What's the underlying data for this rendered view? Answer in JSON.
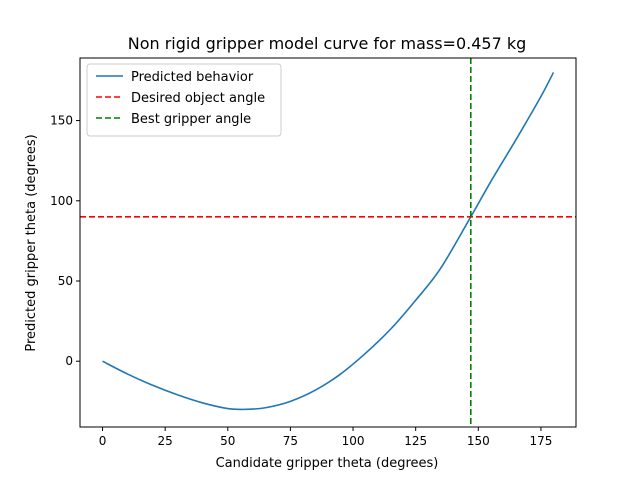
{
  "chart_data": {
    "type": "line",
    "title": "Non rigid gripper model curve for mass=0.457 kg",
    "xlabel": "Candidate gripper theta (degrees)",
    "ylabel": "Predicted gripper theta (degrees)",
    "xlim": [
      -9,
      189
    ],
    "ylim": [
      -41,
      189
    ],
    "xticks": [
      0,
      25,
      50,
      75,
      100,
      125,
      150,
      175
    ],
    "yticks": [
      0,
      50,
      100,
      150
    ],
    "grid": false,
    "legend_position": "top-left",
    "series": [
      {
        "name": "Predicted behavior",
        "color": "#1f77b4",
        "style": "solid",
        "x": [
          0,
          10,
          20,
          30,
          40,
          50,
          57,
          65,
          75,
          85,
          95,
          105,
          115,
          125,
          135,
          147,
          155,
          165,
          175,
          180
        ],
        "y": [
          0,
          -8,
          -15,
          -21,
          -26,
          -29.5,
          -30,
          -29,
          -25,
          -18,
          -8,
          5,
          20,
          38,
          58,
          90,
          112,
          138,
          165,
          180
        ]
      },
      {
        "name": "Desired object angle",
        "color": "#ff0000",
        "style": "dashed",
        "orientation": "horizontal",
        "value": 90
      },
      {
        "name": "Best gripper angle",
        "color": "#008000",
        "style": "dashed",
        "orientation": "vertical",
        "value": 147
      }
    ]
  }
}
